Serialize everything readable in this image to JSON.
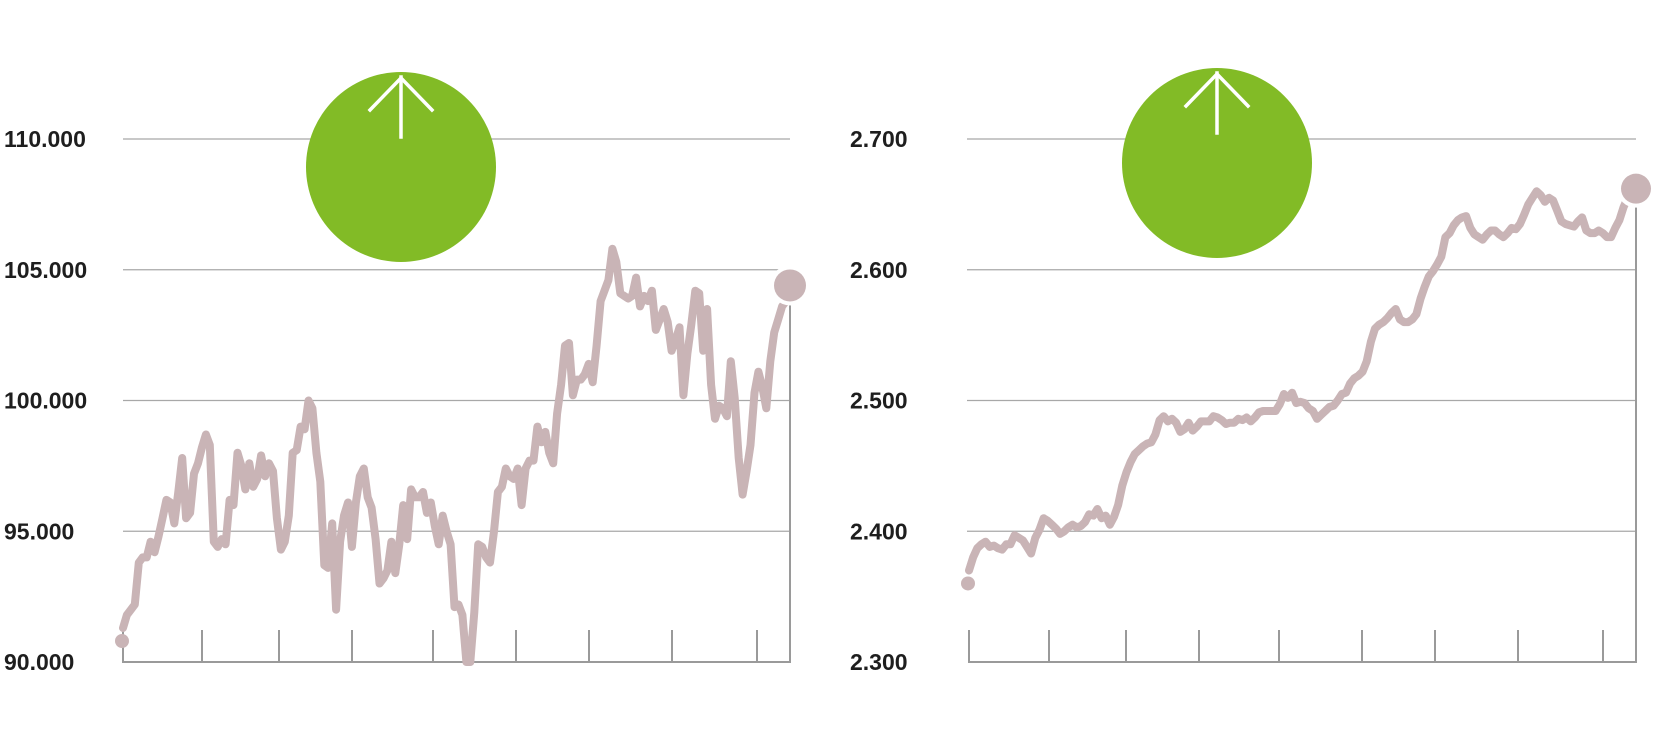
{
  "colors": {
    "line": "#c9b4b6",
    "badge": "#82bb26",
    "grid": "#a8a8a8",
    "axis": "#9a9a9a",
    "arrow": "#ffffff"
  },
  "chart_data": [
    {
      "type": "line",
      "title": "",
      "xlabel": "",
      "ylabel": "",
      "ylim": [
        90000,
        110000
      ],
      "yticks": [
        90000,
        95000,
        100000,
        105000,
        110000
      ],
      "ytick_labels": [
        "90.000",
        "95.000",
        "100.000",
        "105.000",
        "110.000"
      ],
      "grid": true,
      "trend_icon": "arrow-up-icon",
      "x_tick_count": 9,
      "series": [
        {
          "values": [
            91300,
            91800,
            92000,
            92200,
            93800,
            94000,
            94000,
            94600,
            94200,
            94800,
            95500,
            96200,
            96100,
            95300,
            96500,
            97800,
            95500,
            95700,
            97200,
            97600,
            98200,
            98700,
            98300,
            94600,
            94400,
            94700,
            94500,
            96200,
            96000,
            98000,
            97500,
            96600,
            97600,
            96700,
            97000,
            97900,
            97100,
            97600,
            97300,
            95500,
            94300,
            94600,
            95600,
            98000,
            98100,
            99000,
            98900,
            100000,
            99700,
            98000,
            96900,
            93700,
            93600,
            95300,
            92000,
            94600,
            95600,
            96100,
            94400,
            96100,
            97100,
            97400,
            96300,
            95900,
            94700,
            93000,
            93200,
            93500,
            94600,
            93400,
            94500,
            96000,
            94700,
            96600,
            96300,
            96300,
            96500,
            95700,
            96100,
            95200,
            94500,
            95600,
            95000,
            94500,
            92100,
            92200,
            91800,
            90000,
            90000,
            91900,
            94500,
            94400,
            94000,
            93800,
            95000,
            96500,
            96700,
            97400,
            97100,
            97000,
            97400,
            96000,
            97400,
            97700,
            97700,
            99000,
            98400,
            98800,
            98000,
            97600,
            99500,
            100600,
            102100,
            102200,
            100200,
            100800,
            100800,
            101000,
            101400,
            100700,
            102100,
            103800,
            104200,
            104600,
            105800,
            105300,
            104100,
            104000,
            103900,
            104000,
            104700,
            103600,
            104000,
            103800,
            104200,
            102700,
            103100,
            103500,
            103000,
            101900,
            102300,
            102800,
            100200,
            101800,
            102900,
            104200,
            104100,
            101900,
            103500,
            100600,
            99300,
            99800,
            99700,
            99400,
            101500,
            100100,
            97800,
            96400,
            97300,
            98300,
            100300,
            101100,
            100500,
            99700,
            101500,
            102600,
            103100,
            103600,
            103800,
            104400
          ]
        }
      ]
    },
    {
      "type": "line",
      "title": "",
      "xlabel": "",
      "ylabel": "",
      "ylim": [
        2300,
        2700
      ],
      "yticks": [
        2300,
        2400,
        2500,
        2600,
        2700
      ],
      "ytick_labels": [
        "2.300",
        "2.400",
        "2.500",
        "2.600",
        "2.700"
      ],
      "grid": true,
      "trend_icon": "arrow-up-icon",
      "x_tick_count": 9,
      "series": [
        {
          "values": [
            2370,
            2380,
            2387,
            2390,
            2392,
            2388,
            2389,
            2387,
            2386,
            2390,
            2390,
            2397,
            2395,
            2393,
            2388,
            2383,
            2395,
            2401,
            2410,
            2408,
            2405,
            2402,
            2398,
            2400,
            2403,
            2405,
            2403,
            2404,
            2407,
            2413,
            2412,
            2417,
            2410,
            2412,
            2405,
            2411,
            2420,
            2435,
            2445,
            2453,
            2459,
            2462,
            2465,
            2467,
            2468,
            2474,
            2485,
            2488,
            2484,
            2486,
            2483,
            2476,
            2478,
            2483,
            2477,
            2480,
            2484,
            2484,
            2484,
            2488,
            2487,
            2485,
            2482,
            2483,
            2483,
            2486,
            2485,
            2487,
            2484,
            2487,
            2491,
            2492,
            2492,
            2492,
            2492,
            2497,
            2505,
            2502,
            2506,
            2498,
            2499,
            2498,
            2494,
            2492,
            2486,
            2489,
            2492,
            2495,
            2496,
            2500,
            2505,
            2506,
            2513,
            2517,
            2519,
            2522,
            2530,
            2545,
            2555,
            2558,
            2560,
            2563,
            2567,
            2570,
            2562,
            2560,
            2560,
            2562,
            2566,
            2578,
            2587,
            2595,
            2599,
            2604,
            2610,
            2625,
            2628,
            2634,
            2638,
            2640,
            2641,
            2632,
            2627,
            2625,
            2623,
            2627,
            2630,
            2630,
            2627,
            2625,
            2628,
            2632,
            2631,
            2635,
            2642,
            2650,
            2655,
            2660,
            2657,
            2652,
            2655,
            2653,
            2645,
            2637,
            2635,
            2634,
            2633,
            2637,
            2640,
            2630,
            2628,
            2628,
            2630,
            2628,
            2625,
            2625,
            2632,
            2638,
            2648,
            2655,
            2658,
            2662
          ]
        }
      ]
    }
  ]
}
